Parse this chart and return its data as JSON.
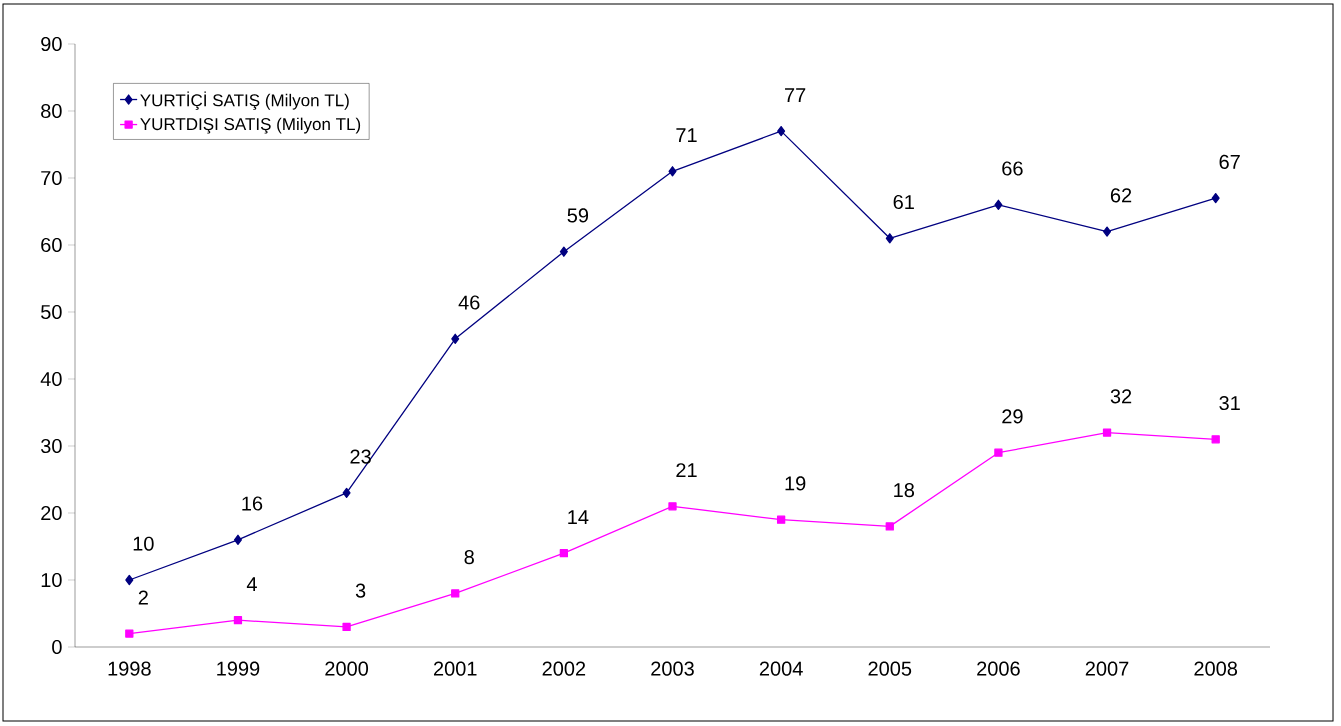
{
  "chart_data": {
    "type": "line",
    "categories": [
      "1998",
      "1999",
      "2000",
      "2001",
      "2002",
      "2003",
      "2004",
      "2005",
      "2006",
      "2007",
      "2008"
    ],
    "series": [
      {
        "name": "YURTİÇİ SATIŞ (Milyon TL)",
        "color": "#000080",
        "marker": "diamond",
        "values": [
          10,
          16,
          23,
          46,
          59,
          71,
          77,
          61,
          66,
          62,
          67
        ]
      },
      {
        "name": "YURTDIŞI SATIŞ (Milyon TL)",
        "color": "#ff00ff",
        "marker": "square",
        "values": [
          2,
          4,
          3,
          8,
          14,
          21,
          19,
          18,
          29,
          32,
          31
        ]
      }
    ],
    "ylim": [
      0,
      90
    ],
    "yticks": [
      0,
      10,
      20,
      30,
      40,
      50,
      60,
      70,
      80,
      90
    ],
    "data_labels": true,
    "legend": "top left"
  }
}
